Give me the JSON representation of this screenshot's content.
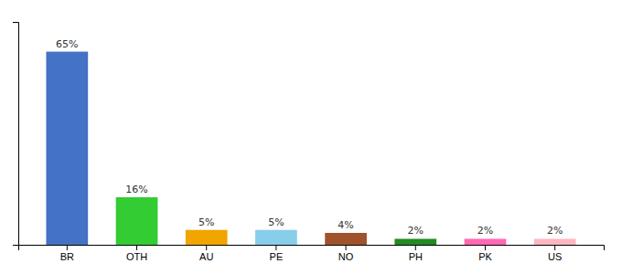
{
  "chart_data": {
    "type": "bar",
    "categories": [
      "BR",
      "OTH",
      "AU",
      "PE",
      "NO",
      "PH",
      "PK",
      "US"
    ],
    "values": [
      65,
      16,
      5,
      5,
      4,
      2,
      2,
      2
    ],
    "value_labels": [
      "65%",
      "16%",
      "5%",
      "5%",
      "4%",
      "2%",
      "2%",
      "2%"
    ],
    "colors": [
      "#4472C4",
      "#33CC33",
      "#F0A500",
      "#87CEEB",
      "#A0522D",
      "#228B22",
      "#FF69B4",
      "#FFB6C1"
    ],
    "ylim": [
      0,
      75
    ],
    "data_labels": true,
    "tick_labels": "x",
    "grid": false
  }
}
